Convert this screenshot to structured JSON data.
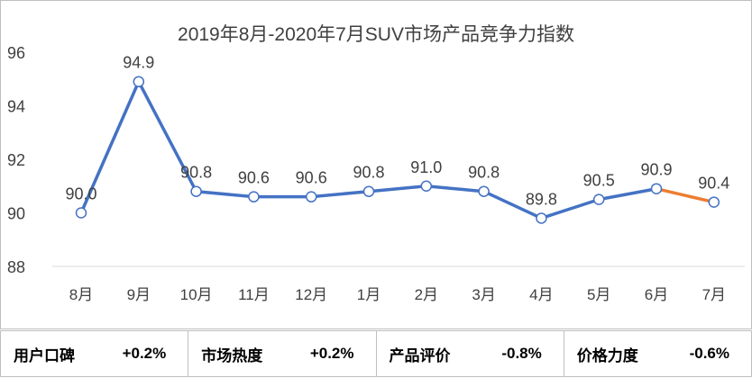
{
  "chart_data": {
    "type": "line",
    "title": "2019年8月-2020年7月SUV市场产品竞争力指数",
    "categories": [
      "8月",
      "9月",
      "10月",
      "11月",
      "12月",
      "1月",
      "2月",
      "3月",
      "4月",
      "5月",
      "6月",
      "7月"
    ],
    "values": [
      90.0,
      94.9,
      90.8,
      90.6,
      90.6,
      90.8,
      91.0,
      90.8,
      89.8,
      90.5,
      90.9,
      90.4
    ],
    "data_labels": [
      "90.0",
      "94.9",
      "90.8",
      "90.6",
      "90.6",
      "90.8",
      "91.0",
      "90.8",
      "89.8",
      "90.5",
      "90.9",
      "90.4"
    ],
    "ylim": [
      88,
      96
    ],
    "yticks": [
      88,
      90,
      92,
      94,
      96
    ],
    "grid": false,
    "colors": {
      "line": "#4472c4",
      "highlight": "#ed7d31"
    }
  },
  "summary": [
    {
      "label": "用户口碑",
      "value": "+0.2%"
    },
    {
      "label": "市场热度",
      "value": "+0.2%"
    },
    {
      "label": "产品评价",
      "value": "-0.8%"
    },
    {
      "label": "价格力度",
      "value": "-0.6%"
    }
  ]
}
